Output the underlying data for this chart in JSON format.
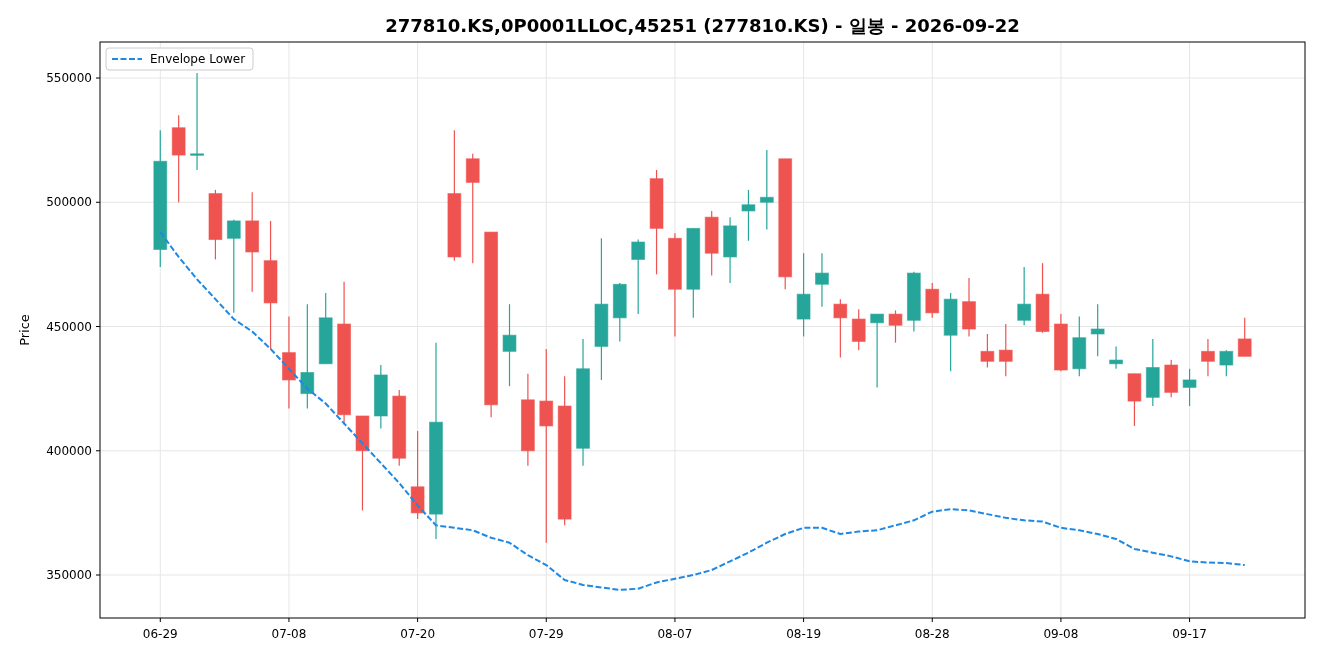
{
  "chart_data": {
    "type": "candlestick",
    "title": "277810.KS,0P0001LLOC,45251 (277810.KS) - 일봉 - 2026-09-22",
    "ylabel": "Price",
    "categories": [
      "06-29",
      null,
      null,
      null,
      null,
      null,
      null,
      "07-08",
      null,
      null,
      null,
      null,
      null,
      null,
      "07-20",
      null,
      null,
      null,
      null,
      null,
      null,
      "07-29",
      null,
      null,
      null,
      null,
      null,
      null,
      "08-07",
      null,
      null,
      null,
      null,
      null,
      null,
      "08-19",
      null,
      null,
      null,
      null,
      null,
      null,
      "08-28",
      null,
      null,
      null,
      null,
      null,
      null,
      "09-08",
      null,
      null,
      null,
      null,
      null,
      null,
      "09-17",
      null,
      null,
      null
    ],
    "ohlc": [
      [
        481000,
        529000,
        474000,
        516500
      ],
      [
        530000,
        535000,
        500000,
        519000
      ],
      [
        519000,
        552000,
        513000,
        519500
      ],
      [
        503500,
        505000,
        477000,
        485000
      ],
      [
        485500,
        493000,
        455500,
        492500
      ],
      [
        492500,
        504000,
        464000,
        480000
      ],
      [
        476500,
        492500,
        441000,
        459500
      ],
      [
        439500,
        454000,
        417000,
        428500
      ],
      [
        423000,
        459000,
        417000,
        431500
      ],
      [
        435000,
        463500,
        435000,
        453500
      ],
      [
        451000,
        468000,
        410500,
        414500
      ],
      [
        414000,
        414000,
        376000,
        400000
      ],
      [
        414000,
        434500,
        409000,
        430500
      ],
      [
        422000,
        424500,
        394000,
        397000
      ],
      [
        385500,
        408000,
        372500,
        375000
      ],
      [
        374500,
        443500,
        364500,
        411500
      ],
      [
        503500,
        529000,
        476500,
        478000
      ],
      [
        517500,
        519500,
        475500,
        508000
      ],
      [
        488000,
        488000,
        413500,
        418500
      ],
      [
        440000,
        459000,
        426000,
        446500
      ],
      [
        420500,
        431000,
        394000,
        400000
      ],
      [
        420000,
        441000,
        363000,
        410000
      ],
      [
        418000,
        430000,
        370000,
        372500
      ],
      [
        401000,
        445000,
        394000,
        433000
      ],
      [
        442000,
        485500,
        428500,
        459000
      ],
      [
        453500,
        467500,
        444000,
        467000
      ],
      [
        477000,
        485000,
        455000,
        484000
      ],
      [
        509500,
        513000,
        471000,
        489500
      ],
      [
        485500,
        487500,
        446000,
        465000
      ],
      [
        465000,
        489500,
        453500,
        489500
      ],
      [
        494000,
        496500,
        470500,
        479500
      ],
      [
        478000,
        494000,
        467500,
        490500
      ],
      [
        496500,
        505000,
        484500,
        499000
      ],
      [
        500000,
        521000,
        489000,
        502000
      ],
      [
        517500,
        517500,
        465000,
        470000
      ],
      [
        453000,
        479500,
        446000,
        463000
      ],
      [
        467000,
        479500,
        458000,
        471500
      ],
      [
        459000,
        461000,
        437500,
        453500
      ],
      [
        453000,
        457000,
        440500,
        444000
      ],
      [
        451500,
        455000,
        425500,
        455000
      ],
      [
        455000,
        456500,
        443500,
        450500
      ],
      [
        452500,
        472000,
        448000,
        471500
      ],
      [
        465000,
        467500,
        453500,
        455500
      ],
      [
        446500,
        463500,
        432000,
        461000
      ],
      [
        460000,
        469500,
        446000,
        449000
      ],
      [
        440000,
        447000,
        433500,
        436000
      ],
      [
        440500,
        451000,
        430000,
        436000
      ],
      [
        452500,
        474000,
        450500,
        459000
      ],
      [
        463000,
        475500,
        447500,
        448000
      ],
      [
        451000,
        455000,
        432000,
        432500
      ],
      [
        433000,
        454000,
        430000,
        445500
      ],
      [
        447000,
        459000,
        438000,
        449000
      ],
      [
        435000,
        442000,
        433000,
        436500
      ],
      [
        431000,
        431000,
        410000,
        420000
      ],
      [
        421500,
        445000,
        418000,
        433500
      ],
      [
        434500,
        436500,
        421500,
        423500
      ],
      [
        425500,
        433000,
        418000,
        428500
      ],
      [
        440000,
        445000,
        430000,
        436000
      ],
      [
        434500,
        440500,
        430000,
        440000
      ],
      [
        445000,
        453500,
        438000,
        438000
      ]
    ],
    "colors": [
      "#26a69a",
      "#ef5350",
      "#26a69a",
      "#ef5350",
      "#26a69a",
      "#ef5350",
      "#ef5350",
      "#ef5350",
      "#26a69a",
      "#26a69a",
      "#ef5350",
      "#ef5350",
      "#26a69a",
      "#ef5350",
      "#ef5350",
      "#26a69a",
      "#ef5350",
      "#ef5350",
      "#ef5350",
      "#26a69a",
      "#ef5350",
      "#ef5350",
      "#ef5350",
      "#26a69a",
      "#26a69a",
      "#26a69a",
      "#26a69a",
      "#ef5350",
      "#ef5350",
      "#26a69a",
      "#ef5350",
      "#26a69a",
      "#26a69a",
      "#26a69a",
      "#ef5350",
      "#26a69a",
      "#26a69a",
      "#ef5350",
      "#ef5350",
      "#26a69a",
      "#ef5350",
      "#26a69a",
      "#ef5350",
      "#26a69a",
      "#ef5350",
      "#ef5350",
      "#ef5350",
      "#26a69a",
      "#ef5350",
      "#ef5350",
      "#26a69a",
      "#26a69a",
      "#26a69a",
      "#ef5350",
      "#26a69a",
      "#ef5350",
      "#26a69a",
      "#ef5350",
      "#26a69a",
      "#ef5350"
    ],
    "series": [
      {
        "name": "Envelope Lower",
        "type": "line",
        "color": "#1e88e5",
        "line_style": "dashed",
        "values": [
          488000,
          478000,
          469000,
          461000,
          453000,
          448000,
          441000,
          433000,
          425000,
          419000,
          411000,
          403000,
          395000,
          387000,
          378000,
          370000,
          369000,
          368000,
          365000,
          363000,
          358000,
          354000,
          348000,
          346000,
          345000,
          344000,
          344500,
          347000,
          348500,
          350000,
          352000,
          355500,
          359000,
          363000,
          366500,
          369000,
          369000,
          366500,
          367500,
          368000,
          370000,
          372000,
          375500,
          376500,
          376000,
          374500,
          373000,
          372000,
          371500,
          369000,
          368000,
          366500,
          364500,
          360500,
          359000,
          357500,
          355500,
          355000,
          354800,
          354000
        ]
      }
    ],
    "ylim": [
      332700,
      564500
    ],
    "yticks": [
      350000,
      400000,
      450000,
      500000,
      550000
    ],
    "grid": true,
    "legend": "top left"
  }
}
